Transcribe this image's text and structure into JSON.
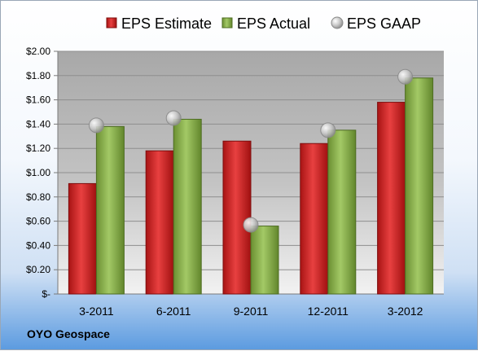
{
  "chart_data": {
    "type": "bar",
    "categories": [
      "3-2011",
      "6-2011",
      "9-2011",
      "12-2011",
      "3-2012"
    ],
    "series": [
      {
        "name": "EPS Estimate",
        "kind": "bar",
        "color": "#d42a2a",
        "values": [
          0.91,
          1.18,
          1.26,
          1.24,
          1.58
        ]
      },
      {
        "name": "EPS Actual",
        "kind": "bar",
        "color": "#8ab14b",
        "values": [
          1.38,
          1.44,
          0.56,
          1.35,
          1.78
        ]
      },
      {
        "name": "EPS GAAP",
        "kind": "marker",
        "color": "#c0c0c0",
        "values": [
          1.39,
          1.45,
          0.57,
          1.35,
          1.79
        ]
      }
    ],
    "yticks": [
      "$-",
      "$0.20",
      "$0.40",
      "$0.60",
      "$0.80",
      "$1.00",
      "$1.20",
      "$1.40",
      "$1.60",
      "$1.80",
      "$2.00"
    ],
    "ylim": [
      0,
      2.0
    ],
    "grid": true,
    "legend_position": "top"
  },
  "company": "OYO Geospace"
}
